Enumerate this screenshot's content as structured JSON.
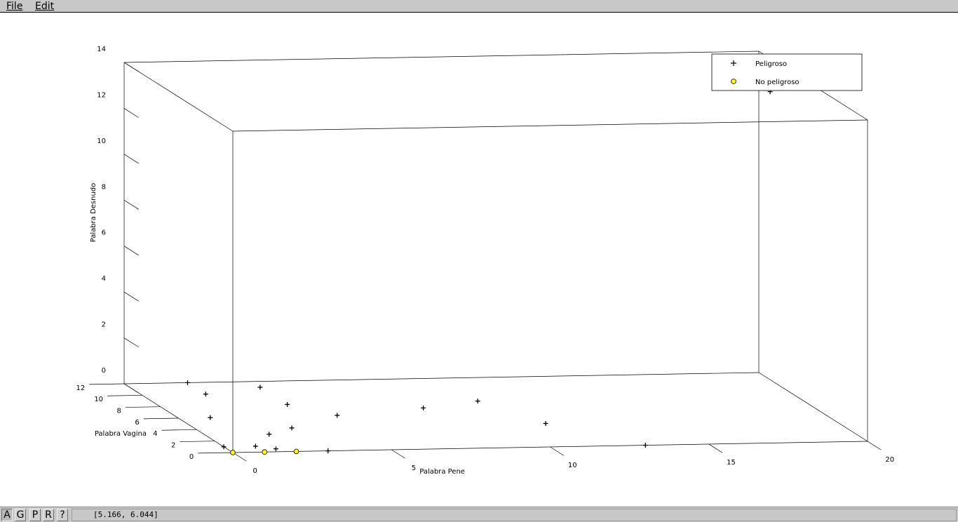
{
  "menu": {
    "file": "File",
    "edit": "Edit"
  },
  "toolbar": {
    "buttons": [
      "A",
      "G",
      "P",
      "R",
      "?"
    ]
  },
  "status": {
    "coordinates": "[5.166, 6.044]"
  },
  "chart_data": {
    "type": "scatter3d",
    "xlabel": "Palabra Pene",
    "ylabel": "Palabra Vagina",
    "zlabel": "Palabra Desnudo",
    "xlim": [
      0,
      20
    ],
    "ylim": [
      0,
      12
    ],
    "zlim": [
      0,
      14
    ],
    "x_ticks": [
      0,
      5,
      10,
      15,
      20
    ],
    "y_ticks": [
      0,
      2,
      4,
      6,
      8,
      10,
      12
    ],
    "z_ticks": [
      0,
      2,
      4,
      6,
      8,
      10,
      12,
      14
    ],
    "legend": {
      "position": "top-right",
      "entries": [
        "Peligroso",
        "No peligroso"
      ]
    },
    "colors": {
      "no_peligroso_fill": "#ffff00",
      "marker_stroke": "#000000"
    },
    "series": [
      {
        "name": "Peligroso",
        "marker": "plus",
        "points": [
          [
            0,
            1,
            0
          ],
          [
            1,
            1,
            0
          ],
          [
            1.5,
            0.5,
            0
          ],
          [
            3,
            0,
            0
          ],
          [
            2,
            3,
            0
          ],
          [
            1,
            6,
            0
          ],
          [
            3,
            4,
            0
          ],
          [
            2,
            10,
            0
          ],
          [
            4,
            8,
            0
          ],
          [
            4,
            11,
            0
          ],
          [
            5,
            6,
            0
          ],
          [
            2,
            12,
            0
          ],
          [
            8,
            7,
            0
          ],
          [
            10,
            8,
            0
          ],
          [
            11,
            4,
            0
          ],
          [
            13,
            0,
            0
          ],
          [
            19.5,
            9,
            13
          ]
        ]
      },
      {
        "name": "No peligroso",
        "marker": "circle",
        "points": [
          [
            0,
            0,
            0
          ],
          [
            1,
            0,
            0
          ],
          [
            2,
            0,
            0
          ]
        ]
      }
    ]
  }
}
